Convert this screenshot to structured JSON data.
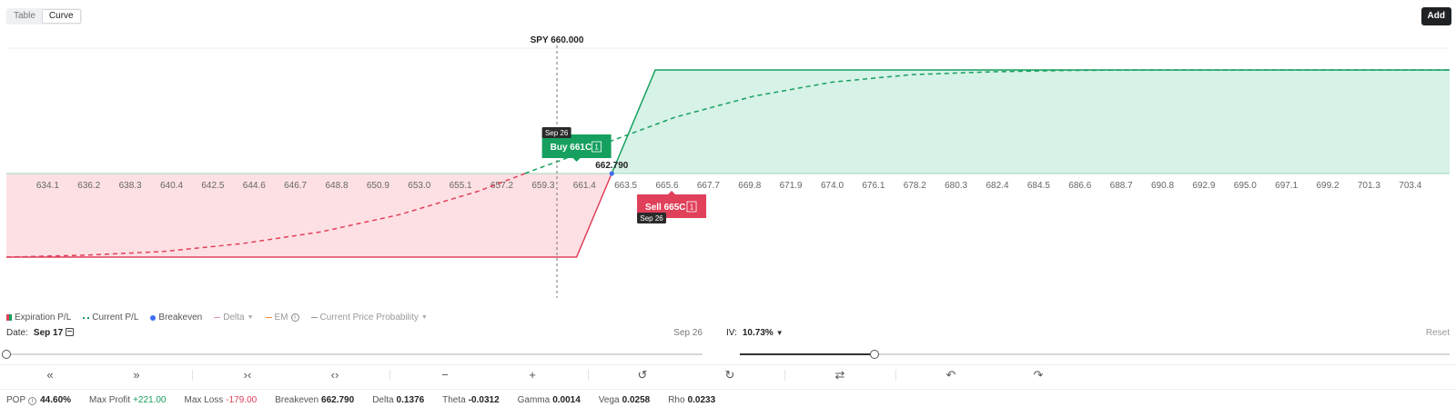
{
  "view_toggle": {
    "table_label": "Table",
    "curve_label": "Curve",
    "active": "Curve"
  },
  "add_label": "Add",
  "colors": {
    "profit": "#16a05f",
    "loss": "#e0405a",
    "profit_fill": "#d7f2e6",
    "loss_fill": "#fde0e4",
    "breakeven": "#3f6ef2"
  },
  "chart_data": {
    "type": "area",
    "underlying_label": "SPY 660.000",
    "underlying_price": 660.0,
    "x_ticks": [
      "634.1",
      "636.2",
      "638.3",
      "640.4",
      "642.5",
      "644.6",
      "646.7",
      "648.8",
      "650.9",
      "653.0",
      "655.1",
      "657.2",
      "659.3",
      "661.4",
      "663.5",
      "665.6",
      "667.7",
      "669.8",
      "671.9",
      "674.0",
      "676.1",
      "678.2",
      "680.3",
      "682.4",
      "684.5",
      "686.6",
      "688.7",
      "690.8",
      "692.9",
      "695.0",
      "697.1",
      "699.2",
      "701.3",
      "703.4"
    ],
    "xlim": [
      632.0,
      705.4
    ],
    "ylim": [
      -179,
      221
    ],
    "series": [
      {
        "name": "Expiration P/L",
        "style": "solid",
        "x": [
          632.0,
          661.0,
          665.0,
          705.4
        ],
        "y": [
          -179,
          -179,
          221,
          221
        ]
      },
      {
        "name": "Current P/L",
        "style": "dashed",
        "x": [
          632.0,
          636.0,
          640.0,
          644.0,
          648.0,
          652.0,
          656.0,
          659.0,
          660.0,
          662.79,
          666.0,
          670.0,
          674.0,
          678.0,
          682.0,
          686.0,
          690.0,
          705.4
        ],
        "y": [
          -179,
          -175,
          -167,
          -150,
          -125,
          -88,
          -38,
          10,
          25,
          70,
          120,
          165,
          195,
          211,
          217,
          220,
          221,
          221
        ]
      }
    ],
    "breakeven_label": "662.790",
    "breakeven": 662.79,
    "legs": [
      {
        "label": "Buy 661C",
        "qty": "1",
        "expiry": "Sep 26",
        "side": "buy",
        "strike": 661
      },
      {
        "label": "Sell 665C",
        "qty": "1",
        "expiry": "Sep 26",
        "side": "sell",
        "strike": 665
      }
    ]
  },
  "legend": {
    "expiration": "Expiration P/L",
    "current": "Current P/L",
    "breakeven": "Breakeven",
    "delta": "Delta",
    "em": "EM",
    "probability": "Current Price Probability"
  },
  "date_control": {
    "label": "Date:",
    "value": "Sep 17",
    "end_label": "Sep 26",
    "position": 0.0
  },
  "iv_control": {
    "label": "IV:",
    "value": "10.73%",
    "reset_label": "Reset",
    "position": 0.19
  },
  "toolbar": [
    {
      "icon": "double-chevron-left-icon",
      "glyph": "«"
    },
    {
      "icon": "double-chevron-right-icon",
      "glyph": "»"
    },
    {
      "icon": "collapse-icon",
      "glyph": "›‹"
    },
    {
      "icon": "expand-icon",
      "glyph": "‹›"
    },
    {
      "icon": "minus-icon",
      "glyph": "−"
    },
    {
      "icon": "plus-icon",
      "glyph": "+"
    },
    {
      "icon": "history-back-icon",
      "glyph": "↺"
    },
    {
      "icon": "history-forward-icon",
      "glyph": "↻"
    },
    {
      "icon": "swap-icon",
      "glyph": "⇄"
    },
    {
      "icon": "undo-icon",
      "glyph": "↶"
    },
    {
      "icon": "redo-icon",
      "glyph": "↷"
    }
  ],
  "stats": {
    "pop_label": "POP",
    "pop": "44.60%",
    "max_profit_label": "Max Profit",
    "max_profit": "+221.00",
    "max_loss_label": "Max Loss",
    "max_loss": "-179.00",
    "breakeven_label": "Breakeven",
    "breakeven": "662.790",
    "delta_label": "Delta",
    "delta": "0.1376",
    "theta_label": "Theta",
    "theta": "-0.0312",
    "gamma_label": "Gamma",
    "gamma": "0.0014",
    "vega_label": "Vega",
    "vega": "0.0258",
    "rho_label": "Rho",
    "rho": "0.0233"
  }
}
